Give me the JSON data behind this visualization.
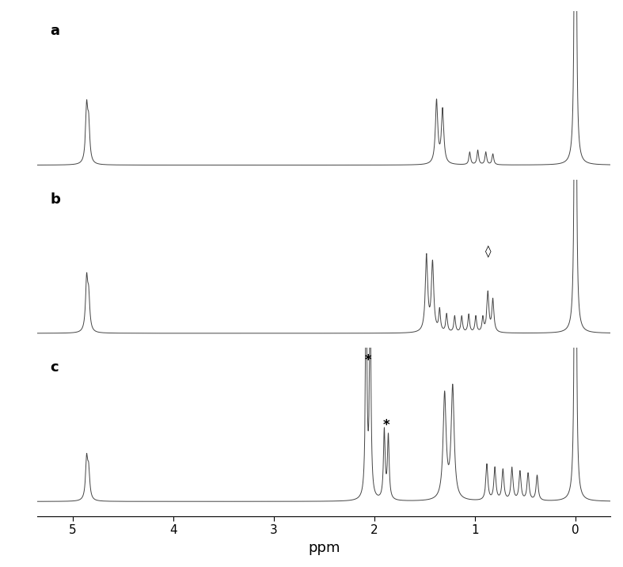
{
  "xlim_left": 5.35,
  "xlim_right": -0.35,
  "xticks": [
    5,
    4,
    3,
    2,
    1,
    0
  ],
  "xlabel": "ppm",
  "background_color": "#ffffff",
  "line_color": "#444444",
  "line_width": 0.7,
  "label_a": "a",
  "label_b": "b",
  "label_c": "c",
  "diamond_symbol": "◊",
  "asterisk_symbol": "*"
}
